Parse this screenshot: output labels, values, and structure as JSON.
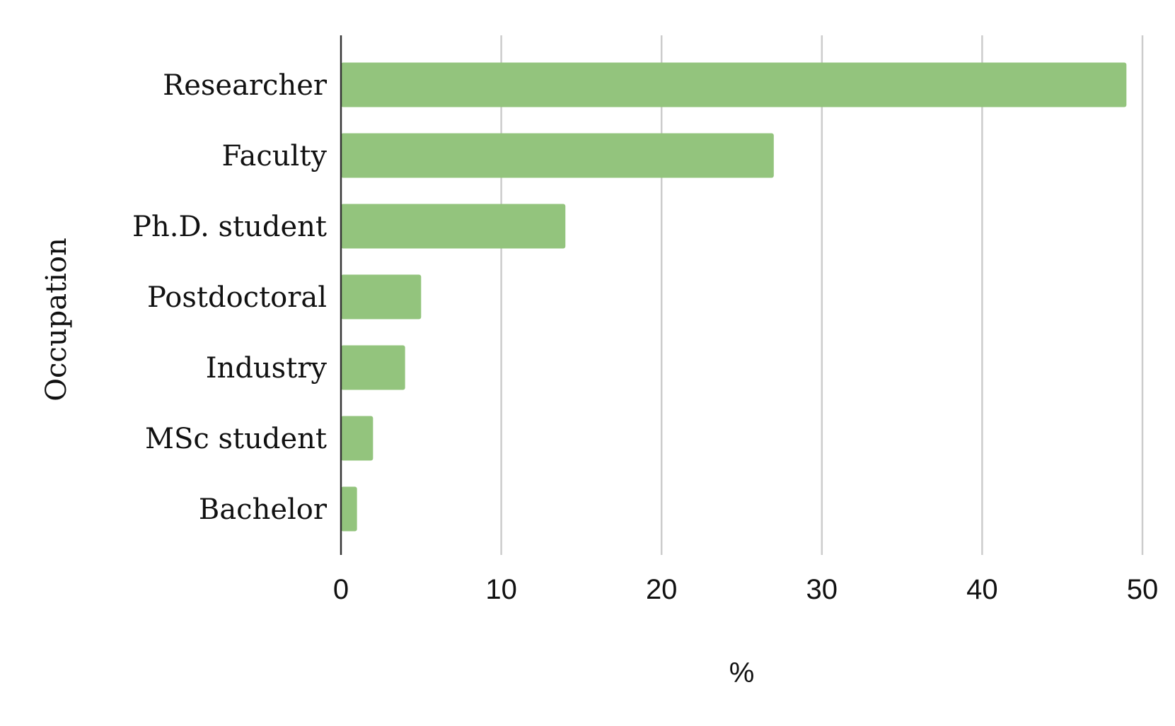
{
  "chart_data": {
    "type": "bar",
    "orientation": "horizontal",
    "categories": [
      "Researcher",
      "Faculty",
      "Ph.D. student",
      "Postdoctoral",
      "Industry",
      "MSc student",
      "Bachelor"
    ],
    "values": [
      49,
      27,
      14,
      5,
      4,
      2,
      1
    ],
    "xlabel": "%",
    "ylabel": "Occupation",
    "xlim": [
      0,
      50
    ],
    "xticks": [
      0,
      10,
      20,
      30,
      40,
      50
    ],
    "grid": "vertical",
    "legend": "none",
    "colors": {
      "bar": "#93c47d",
      "grid": "#cccccc",
      "axis": "#333333"
    }
  }
}
